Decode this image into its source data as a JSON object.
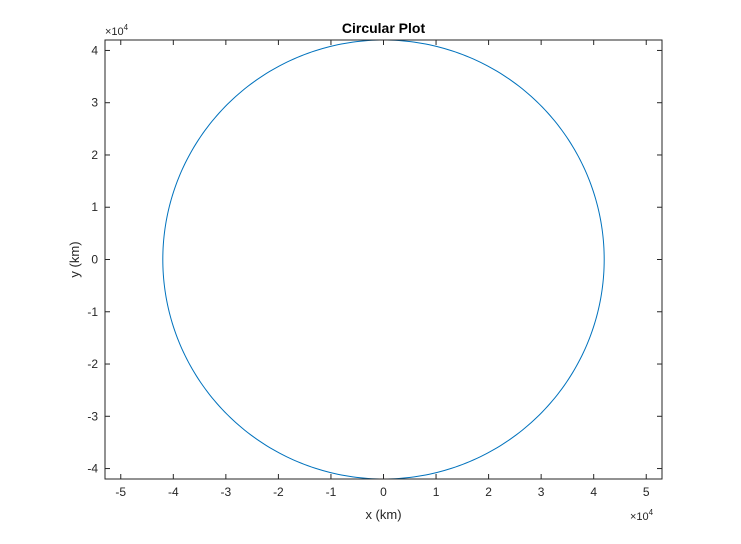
{
  "chart_data": {
    "type": "line",
    "title": "Circular Plot",
    "xlabel": "x (km)",
    "ylabel": "y (km)",
    "xlim": [
      -5.3,
      5.3
    ],
    "ylim": [
      -4.2,
      4.2
    ],
    "xticks": [
      -5,
      -4,
      -3,
      -2,
      -1,
      0,
      1,
      2,
      3,
      4,
      5
    ],
    "xtick_labels": [
      "-5",
      "-4",
      "-3",
      "-2",
      "-1",
      "0",
      "1",
      "2",
      "3",
      "4",
      "5"
    ],
    "yticks": [
      -4,
      -3,
      -2,
      -1,
      0,
      1,
      2,
      3,
      4
    ],
    "ytick_labels": [
      "-4",
      "-3",
      "-2",
      "-1",
      "0",
      "1",
      "2",
      "3",
      "4"
    ],
    "x_exponent": {
      "base": "×10",
      "power": "4"
    },
    "y_exponent": {
      "base": "×10",
      "power": "4"
    },
    "grid": false,
    "series": [
      {
        "name": "circle",
        "shape": "circle",
        "center": [
          0,
          0
        ],
        "radius": 4.2,
        "unit_scale": 10000,
        "color": "#0072BD"
      }
    ]
  }
}
